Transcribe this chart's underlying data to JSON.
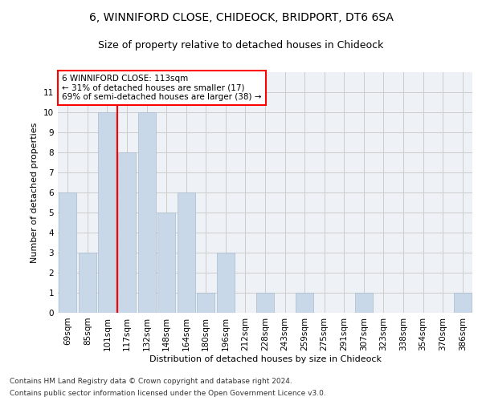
{
  "title1": "6, WINNIFORD CLOSE, CHIDEOCK, BRIDPORT, DT6 6SA",
  "title2": "Size of property relative to detached houses in Chideock",
  "xlabel": "Distribution of detached houses by size in Chideock",
  "ylabel": "Number of detached properties",
  "footnote1": "Contains HM Land Registry data © Crown copyright and database right 2024.",
  "footnote2": "Contains public sector information licensed under the Open Government Licence v3.0.",
  "bar_labels": [
    "69sqm",
    "85sqm",
    "101sqm",
    "117sqm",
    "132sqm",
    "148sqm",
    "164sqm",
    "180sqm",
    "196sqm",
    "212sqm",
    "228sqm",
    "243sqm",
    "259sqm",
    "275sqm",
    "291sqm",
    "307sqm",
    "323sqm",
    "338sqm",
    "354sqm",
    "370sqm",
    "386sqm"
  ],
  "bar_values": [
    6,
    3,
    10,
    8,
    10,
    5,
    6,
    1,
    3,
    0,
    1,
    0,
    1,
    0,
    0,
    1,
    0,
    0,
    0,
    0,
    1
  ],
  "bar_color": "#c8d8e8",
  "bar_edge_color": "#aabbcc",
  "annotation_text": "6 WINNIFORD CLOSE: 113sqm\n← 31% of detached houses are smaller (17)\n69% of semi-detached houses are larger (38) →",
  "annotation_box_color": "white",
  "annotation_border_color": "red",
  "highlight_line_color": "red",
  "ylim": [
    0,
    12
  ],
  "yticks": [
    0,
    1,
    2,
    3,
    4,
    5,
    6,
    7,
    8,
    9,
    10,
    11
  ],
  "grid_color": "#cccccc",
  "bg_color": "#eef2f7",
  "title1_fontsize": 10,
  "title2_fontsize": 9,
  "axis_label_fontsize": 8,
  "tick_fontsize": 7.5,
  "footnote_fontsize": 6.5,
  "annotation_fontsize": 7.5
}
